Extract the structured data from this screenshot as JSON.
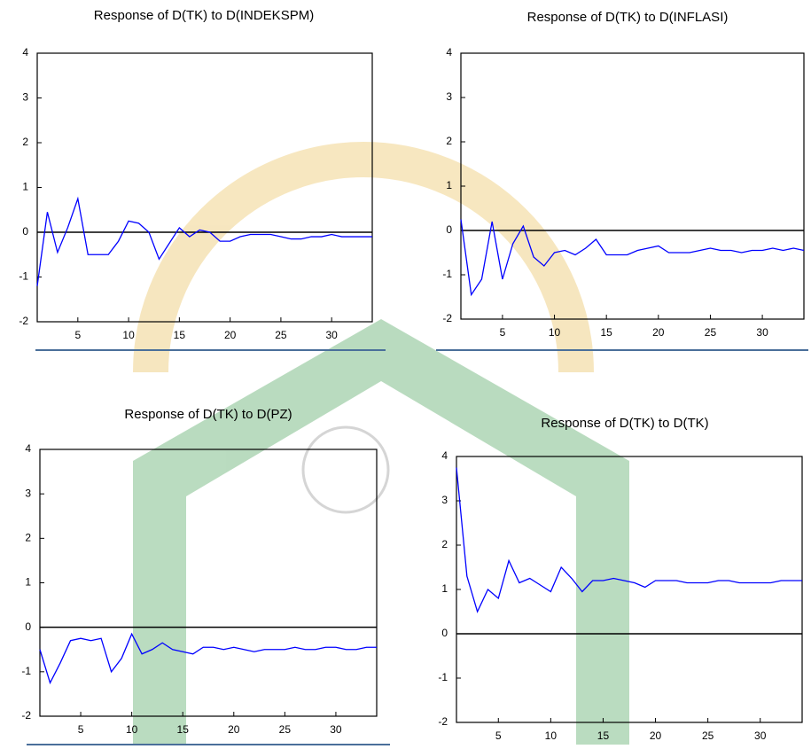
{
  "chart_data": [
    {
      "type": "line",
      "title": "Response of D(TK) to D(INDEKSPM)",
      "color": "#0000ff",
      "x": [
        1,
        2,
        3,
        4,
        5,
        6,
        7,
        8,
        9,
        10,
        11,
        12,
        13,
        14,
        15,
        16,
        17,
        18,
        19,
        20,
        21,
        22,
        23,
        24,
        25,
        26,
        27,
        28,
        29,
        30,
        31,
        32,
        33,
        34
      ],
      "values": [
        -1.2,
        0.45,
        -0.45,
        0.1,
        0.75,
        -0.5,
        -0.5,
        -0.5,
        -0.2,
        0.25,
        0.2,
        0,
        -0.6,
        -0.25,
        0.1,
        -0.1,
        0.05,
        0,
        -0.2,
        -0.2,
        -0.1,
        -0.05,
        -0.05,
        -0.05,
        -0.1,
        -0.15,
        -0.15,
        -0.1,
        -0.1,
        -0.05,
        -0.1,
        -0.1,
        -0.1,
        -0.1
      ],
      "xlim": [
        1,
        34
      ],
      "xticks": [
        5,
        10,
        15,
        20,
        25,
        30
      ],
      "ylim": [
        -2,
        4
      ],
      "yticks": [
        -2,
        -1,
        0,
        1,
        2,
        3,
        4
      ]
    },
    {
      "type": "line",
      "title": "Response of D(TK) to D(INFLASI)",
      "color": "#0000ff",
      "x": [
        1,
        2,
        3,
        4,
        5,
        6,
        7,
        8,
        9,
        10,
        11,
        12,
        13,
        14,
        15,
        16,
        17,
        18,
        19,
        20,
        21,
        22,
        23,
        24,
        25,
        26,
        27,
        28,
        29,
        30,
        31,
        32,
        33,
        34
      ],
      "values": [
        0.25,
        -1.45,
        -1.1,
        0.2,
        -1.1,
        -0.3,
        0.1,
        -0.6,
        -0.8,
        -0.5,
        -0.45,
        -0.55,
        -0.4,
        -0.2,
        -0.55,
        -0.55,
        -0.55,
        -0.45,
        -0.4,
        -0.35,
        -0.5,
        -0.5,
        -0.5,
        -0.45,
        -0.4,
        -0.45,
        -0.45,
        -0.5,
        -0.45,
        -0.45,
        -0.4,
        -0.45,
        -0.4,
        -0.45
      ],
      "xlim": [
        1,
        34
      ],
      "xticks": [
        5,
        10,
        15,
        20,
        25,
        30
      ],
      "ylim": [
        -2,
        4
      ],
      "yticks": [
        -2,
        -1,
        0,
        1,
        2,
        3,
        4
      ]
    },
    {
      "type": "line",
      "title": "Response of D(TK) to D(PZ)",
      "color": "#0000ff",
      "x": [
        1,
        2,
        3,
        4,
        5,
        6,
        7,
        8,
        9,
        10,
        11,
        12,
        13,
        14,
        15,
        16,
        17,
        18,
        19,
        20,
        21,
        22,
        23,
        24,
        25,
        26,
        27,
        28,
        29,
        30,
        31,
        32,
        33,
        34
      ],
      "values": [
        -0.5,
        -1.25,
        -0.8,
        -0.3,
        -0.25,
        -0.3,
        -0.25,
        -1.0,
        -0.7,
        -0.15,
        -0.6,
        -0.5,
        -0.35,
        -0.5,
        -0.55,
        -0.6,
        -0.45,
        -0.45,
        -0.5,
        -0.45,
        -0.5,
        -0.55,
        -0.5,
        -0.5,
        -0.5,
        -0.45,
        -0.5,
        -0.5,
        -0.45,
        -0.45,
        -0.5,
        -0.5,
        -0.45,
        -0.45
      ],
      "xlim": [
        1,
        34
      ],
      "xticks": [
        5,
        10,
        15,
        20,
        25,
        30
      ],
      "ylim": [
        -2,
        4
      ],
      "yticks": [
        -2,
        -1,
        0,
        1,
        2,
        3,
        4
      ]
    },
    {
      "type": "line",
      "title": "Response of D(TK) to D(TK)",
      "color": "#0000ff",
      "x": [
        1,
        2,
        3,
        4,
        5,
        6,
        7,
        8,
        9,
        10,
        11,
        12,
        13,
        14,
        15,
        16,
        17,
        18,
        19,
        20,
        21,
        22,
        23,
        24,
        25,
        26,
        27,
        28,
        29,
        30,
        31,
        32,
        33,
        34
      ],
      "values": [
        3.75,
        1.3,
        0.5,
        1.0,
        0.8,
        1.65,
        1.15,
        1.25,
        1.1,
        0.95,
        1.5,
        1.25,
        0.95,
        1.2,
        1.2,
        1.25,
        1.2,
        1.15,
        1.05,
        1.2,
        1.2,
        1.2,
        1.15,
        1.15,
        1.15,
        1.2,
        1.2,
        1.15,
        1.15,
        1.15,
        1.15,
        1.2,
        1.2,
        1.2
      ],
      "xlim": [
        1,
        34
      ],
      "xticks": [
        5,
        10,
        15,
        20,
        25,
        30
      ],
      "ylim": [
        -2,
        4
      ],
      "yticks": [
        -2,
        -1,
        0,
        1,
        2,
        3,
        4
      ]
    }
  ]
}
